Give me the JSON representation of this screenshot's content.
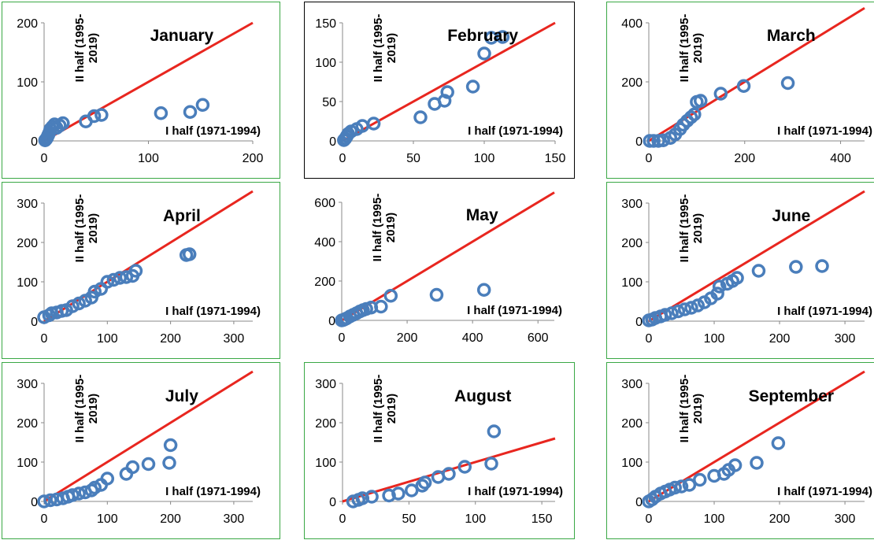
{
  "style": {
    "marker_color": "#4a7ebb",
    "line_color": "#e8261f",
    "frame_green": "#3aa845",
    "frame_black": "#000000"
  },
  "labels": {
    "x_axis": "I half (1971-1994)",
    "y_axis_line1": "II half (1995-",
    "y_axis_line2": "2019)"
  },
  "chart_data": [
    {
      "type": "scatter",
      "title": "January",
      "frame": "green",
      "xlim": [
        0,
        200
      ],
      "ylim": [
        0,
        200
      ],
      "xticks": [
        0,
        100,
        200
      ],
      "yticks": [
        0,
        100,
        200
      ],
      "reference_line": [
        [
          0,
          0
        ],
        [
          200,
          200
        ]
      ],
      "points": [
        [
          1,
          1
        ],
        [
          2,
          3
        ],
        [
          3,
          6
        ],
        [
          4,
          10
        ],
        [
          5,
          14
        ],
        [
          6,
          20
        ],
        [
          8,
          24
        ],
        [
          10,
          28
        ],
        [
          12,
          22
        ],
        [
          15,
          26
        ],
        [
          18,
          30
        ],
        [
          40,
          33
        ],
        [
          48,
          42
        ],
        [
          55,
          44
        ],
        [
          112,
          47
        ],
        [
          140,
          49
        ],
        [
          152,
          61
        ]
      ]
    },
    {
      "type": "scatter",
      "title": "February",
      "frame": "black",
      "xlim": [
        0,
        150
      ],
      "ylim": [
        0,
        150
      ],
      "xticks": [
        0,
        50,
        100,
        150
      ],
      "yticks": [
        0,
        50,
        100,
        150
      ],
      "reference_line": [
        [
          0,
          0
        ],
        [
          150,
          150
        ]
      ],
      "points": [
        [
          1,
          1
        ],
        [
          2,
          3
        ],
        [
          3,
          6
        ],
        [
          4,
          9
        ],
        [
          6,
          12
        ],
        [
          10,
          15
        ],
        [
          14,
          19
        ],
        [
          22,
          22
        ],
        [
          55,
          30
        ],
        [
          65,
          47
        ],
        [
          72,
          51
        ],
        [
          74,
          62
        ],
        [
          92,
          69
        ],
        [
          100,
          111
        ],
        [
          105,
          131
        ],
        [
          113,
          132
        ]
      ]
    },
    {
      "type": "scatter",
      "title": "March",
      "frame": "green",
      "xlim": [
        0,
        450
      ],
      "ylim": [
        0,
        400
      ],
      "xticks": [
        0,
        200,
        400
      ],
      "yticks": [
        0,
        200,
        400
      ],
      "reference_line": [
        [
          0,
          0
        ],
        [
          450,
          450
        ]
      ],
      "points": [
        [
          2,
          0
        ],
        [
          10,
          0
        ],
        [
          20,
          0
        ],
        [
          30,
          2
        ],
        [
          45,
          10
        ],
        [
          55,
          22
        ],
        [
          65,
          40
        ],
        [
          72,
          55
        ],
        [
          80,
          68
        ],
        [
          88,
          80
        ],
        [
          95,
          90
        ],
        [
          100,
          132
        ],
        [
          108,
          136
        ],
        [
          150,
          160
        ],
        [
          198,
          186
        ],
        [
          290,
          196
        ]
      ]
    },
    {
      "type": "scatter",
      "title": "April",
      "frame": "green",
      "xlim": [
        0,
        330
      ],
      "ylim": [
        0,
        300
      ],
      "xticks": [
        0,
        100,
        200,
        300
      ],
      "yticks": [
        0,
        100,
        200,
        300
      ],
      "reference_line": [
        [
          0,
          0
        ],
        [
          330,
          330
        ]
      ],
      "points": [
        [
          0,
          10
        ],
        [
          8,
          15
        ],
        [
          12,
          20
        ],
        [
          20,
          22
        ],
        [
          28,
          26
        ],
        [
          35,
          28
        ],
        [
          45,
          38
        ],
        [
          55,
          45
        ],
        [
          65,
          52
        ],
        [
          75,
          60
        ],
        [
          80,
          75
        ],
        [
          90,
          82
        ],
        [
          100,
          100
        ],
        [
          110,
          105
        ],
        [
          120,
          110
        ],
        [
          130,
          112
        ],
        [
          140,
          115
        ],
        [
          145,
          128
        ],
        [
          225,
          168
        ],
        [
          230,
          170
        ]
      ]
    },
    {
      "type": "scatter",
      "title": "May",
      "frame": "none",
      "xlim": [
        0,
        650
      ],
      "ylim": [
        0,
        600
      ],
      "xticks": [
        0,
        200,
        400,
        600
      ],
      "yticks": [
        0,
        200,
        400,
        600
      ],
      "reference_line": [
        [
          0,
          0
        ],
        [
          650,
          650
        ]
      ],
      "points": [
        [
          0,
          0
        ],
        [
          5,
          2
        ],
        [
          10,
          6
        ],
        [
          15,
          10
        ],
        [
          25,
          20
        ],
        [
          35,
          28
        ],
        [
          45,
          36
        ],
        [
          55,
          45
        ],
        [
          65,
          52
        ],
        [
          75,
          58
        ],
        [
          90,
          65
        ],
        [
          120,
          70
        ],
        [
          150,
          125
        ],
        [
          290,
          130
        ],
        [
          435,
          155
        ]
      ]
    },
    {
      "type": "scatter",
      "title": "June",
      "frame": "green",
      "xlim": [
        0,
        330
      ],
      "ylim": [
        0,
        300
      ],
      "xticks": [
        0,
        100,
        200,
        300
      ],
      "yticks": [
        0,
        100,
        200,
        300
      ],
      "reference_line": [
        [
          0,
          0
        ],
        [
          330,
          330
        ]
      ],
      "points": [
        [
          0,
          2
        ],
        [
          5,
          4
        ],
        [
          10,
          8
        ],
        [
          18,
          12
        ],
        [
          25,
          16
        ],
        [
          35,
          20
        ],
        [
          45,
          25
        ],
        [
          55,
          30
        ],
        [
          65,
          34
        ],
        [
          75,
          40
        ],
        [
          85,
          48
        ],
        [
          95,
          58
        ],
        [
          105,
          70
        ],
        [
          108,
          88
        ],
        [
          120,
          95
        ],
        [
          128,
          102
        ],
        [
          135,
          110
        ],
        [
          168,
          128
        ],
        [
          225,
          138
        ],
        [
          265,
          140
        ]
      ]
    },
    {
      "type": "scatter",
      "title": "July",
      "frame": "green",
      "xlim": [
        0,
        330
      ],
      "ylim": [
        0,
        300
      ],
      "xticks": [
        0,
        100,
        200,
        300
      ],
      "yticks": [
        0,
        100,
        200,
        300
      ],
      "reference_line": [
        [
          0,
          0
        ],
        [
          330,
          330
        ]
      ],
      "points": [
        [
          0,
          0
        ],
        [
          10,
          3
        ],
        [
          20,
          5
        ],
        [
          30,
          8
        ],
        [
          38,
          12
        ],
        [
          45,
          16
        ],
        [
          55,
          20
        ],
        [
          65,
          23
        ],
        [
          75,
          28
        ],
        [
          80,
          35
        ],
        [
          90,
          42
        ],
        [
          100,
          58
        ],
        [
          130,
          70
        ],
        [
          140,
          87
        ],
        [
          165,
          95
        ],
        [
          198,
          98
        ],
        [
          200,
          143
        ]
      ]
    },
    {
      "type": "scatter",
      "title": "August",
      "frame": "green",
      "xlim": [
        0,
        160
      ],
      "ylim": [
        0,
        300
      ],
      "xticks": [
        0,
        50,
        100,
        150
      ],
      "yticks": [
        0,
        100,
        200,
        300
      ],
      "reference_line": [
        [
          0,
          0
        ],
        [
          160,
          160
        ]
      ],
      "points": [
        [
          8,
          0
        ],
        [
          12,
          4
        ],
        [
          15,
          8
        ],
        [
          22,
          12
        ],
        [
          35,
          15
        ],
        [
          42,
          20
        ],
        [
          52,
          28
        ],
        [
          60,
          40
        ],
        [
          62,
          48
        ],
        [
          72,
          62
        ],
        [
          80,
          70
        ],
        [
          92,
          88
        ],
        [
          112,
          96
        ],
        [
          114,
          178
        ]
      ]
    },
    {
      "type": "scatter",
      "title": "September",
      "frame": "green",
      "xlim": [
        0,
        330
      ],
      "ylim": [
        0,
        300
      ],
      "xticks": [
        0,
        100,
        200,
        300
      ],
      "yticks": [
        0,
        100,
        200,
        300
      ],
      "reference_line": [
        [
          0,
          0
        ],
        [
          330,
          330
        ]
      ],
      "points": [
        [
          0,
          0
        ],
        [
          5,
          5
        ],
        [
          10,
          12
        ],
        [
          18,
          20
        ],
        [
          25,
          25
        ],
        [
          32,
          30
        ],
        [
          40,
          35
        ],
        [
          50,
          38
        ],
        [
          62,
          42
        ],
        [
          78,
          55
        ],
        [
          100,
          65
        ],
        [
          115,
          70
        ],
        [
          122,
          80
        ],
        [
          132,
          92
        ],
        [
          165,
          98
        ],
        [
          198,
          148
        ]
      ]
    }
  ]
}
